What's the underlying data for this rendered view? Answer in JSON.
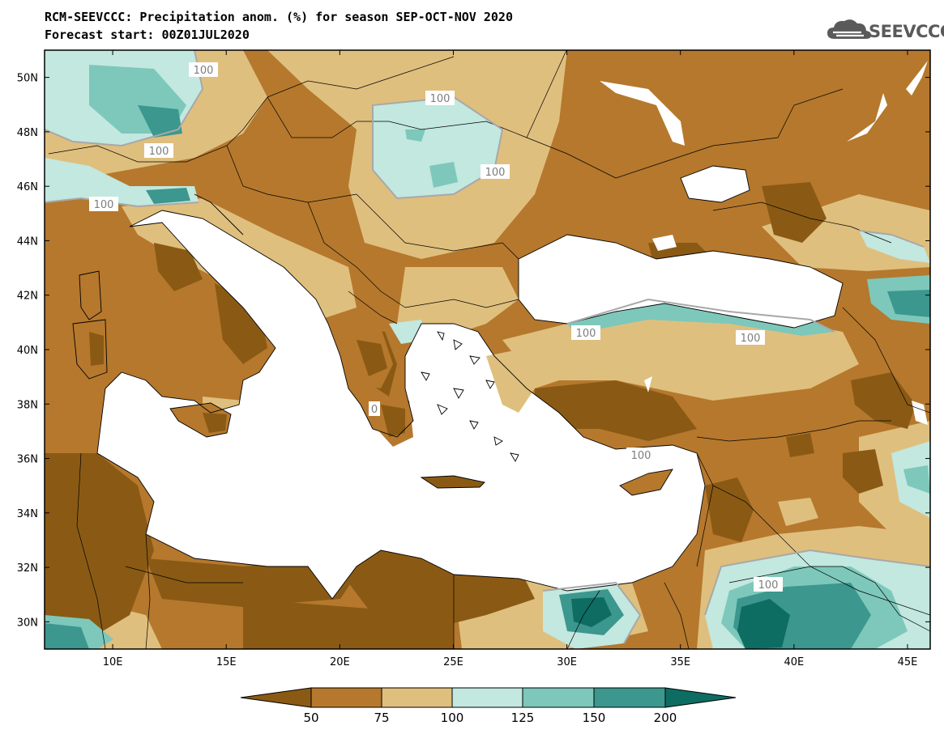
{
  "title": {
    "line1": "RCM-SEEVCCC: Precipitation anom. (%) for season SEP-OCT-NOV 2020",
    "line2": "Forecast start: 00Z01JUL2020"
  },
  "brand": {
    "text": "SEEVCCC",
    "icon": "cloud-logo-icon",
    "color": "#5a5a5a"
  },
  "map": {
    "lon_ticks": [
      "10E",
      "15E",
      "20E",
      "25E",
      "30E",
      "35E",
      "40E",
      "45E"
    ],
    "lat_ticks": [
      "50N",
      "48N",
      "46N",
      "44N",
      "42N",
      "40N",
      "38N",
      "36N",
      "34N",
      "32N",
      "30N"
    ],
    "lon_range": [
      7,
      46
    ],
    "lat_range": [
      29,
      51
    ],
    "contour_labels": [
      "100",
      "100",
      "100",
      "100",
      "100",
      "100",
      "100",
      "100",
      "100",
      "0"
    ]
  },
  "colorbar": {
    "levels": [
      "50",
      "75",
      "100",
      "125",
      "150",
      "200"
    ],
    "colors": [
      "#8a5a14",
      "#b5782d",
      "#dfbf7e",
      "#c2e8e0",
      "#7dc8bb",
      "#3c978e",
      "#0e6d62"
    ]
  },
  "palette": {
    "below_50": "#8a5a14",
    "50_75": "#b5782d",
    "75_100": "#dfbf7e",
    "100_125": "#c2e8e0",
    "125_150": "#7dc8bb",
    "150_200": "#3c978e",
    "above_200": "#0e6d62",
    "sea": "#ffffff"
  }
}
